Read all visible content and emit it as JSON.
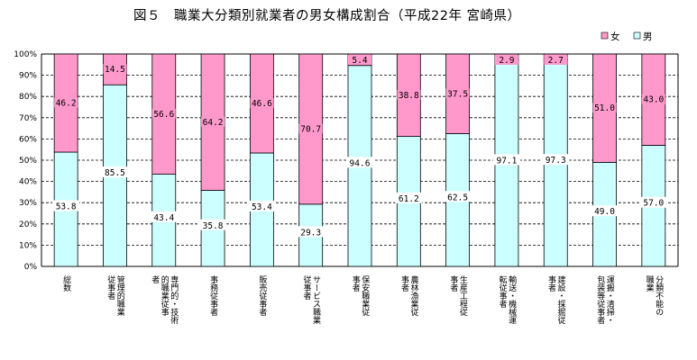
{
  "chart_data": {
    "type": "bar",
    "stacked": true,
    "title": "図５　職業大分類別就業者の男女構成割合（平成22年 宮崎県）",
    "ylim": [
      0,
      100
    ],
    "yticks": [
      "0%",
      "10%",
      "20%",
      "30%",
      "40%",
      "50%",
      "60%",
      "70%",
      "80%",
      "90%",
      "100%"
    ],
    "grid": true,
    "legend_position": "top-right",
    "categories": [
      "総数",
      "管理的職業従事者",
      "専門的・技術的職業従事者",
      "事務従事者",
      "販売従事者",
      "サービス職業従事者",
      "保安職業従事者",
      "農林漁業従事者",
      "生産工程従事者",
      "輸送・機械運転従事者",
      "建設・採掘従事者",
      "運搬・清掃・包装等従事者",
      "分類不能の職業"
    ],
    "category_columns": [
      [
        "総数"
      ],
      [
        "管理的職業",
        "従事者"
      ],
      [
        "専門的・技術",
        "的職業従事",
        "者"
      ],
      [
        "事務従事者"
      ],
      [
        "販売従事者"
      ],
      [
        "サービス職業",
        "従事者"
      ],
      [
        "保安職業従",
        "事者"
      ],
      [
        "農林漁業従",
        "事者"
      ],
      [
        "生産工程従",
        "事者"
      ],
      [
        "輸送・機械運",
        "転従事者"
      ],
      [
        "建設・採掘従",
        "事者"
      ],
      [
        "運搬・清掃・",
        "包装等従事者"
      ],
      [
        "分類不能の",
        "職業"
      ]
    ],
    "series": [
      {
        "name": "男",
        "color": "#ccffff",
        "values": [
          53.8,
          85.5,
          43.4,
          35.8,
          53.4,
          29.3,
          94.6,
          61.2,
          62.5,
          97.1,
          97.3,
          49.0,
          57.0
        ],
        "labels": [
          "53.8",
          "85.5",
          "43.4",
          "35.8",
          "53.4",
          "29.3",
          "94.6",
          "61.2",
          "62.5",
          "97.1",
          "97.3",
          "49.0",
          "57.0"
        ]
      },
      {
        "name": "女",
        "color": "#ff99cc",
        "values": [
          46.2,
          14.5,
          56.6,
          64.2,
          46.6,
          70.7,
          5.4,
          38.8,
          37.5,
          2.9,
          2.7,
          51.0,
          43.0
        ],
        "labels": [
          "46.2",
          "14.5",
          "56.6",
          "64.2",
          "46.6",
          "70.7",
          "5.4",
          "38.8",
          "37.5",
          "2.9",
          "2.7",
          "51.0",
          "43.0"
        ]
      }
    ],
    "legend": [
      {
        "name": "女",
        "color": "#ff99cc"
      },
      {
        "name": "男",
        "color": "#ccffff"
      }
    ]
  }
}
